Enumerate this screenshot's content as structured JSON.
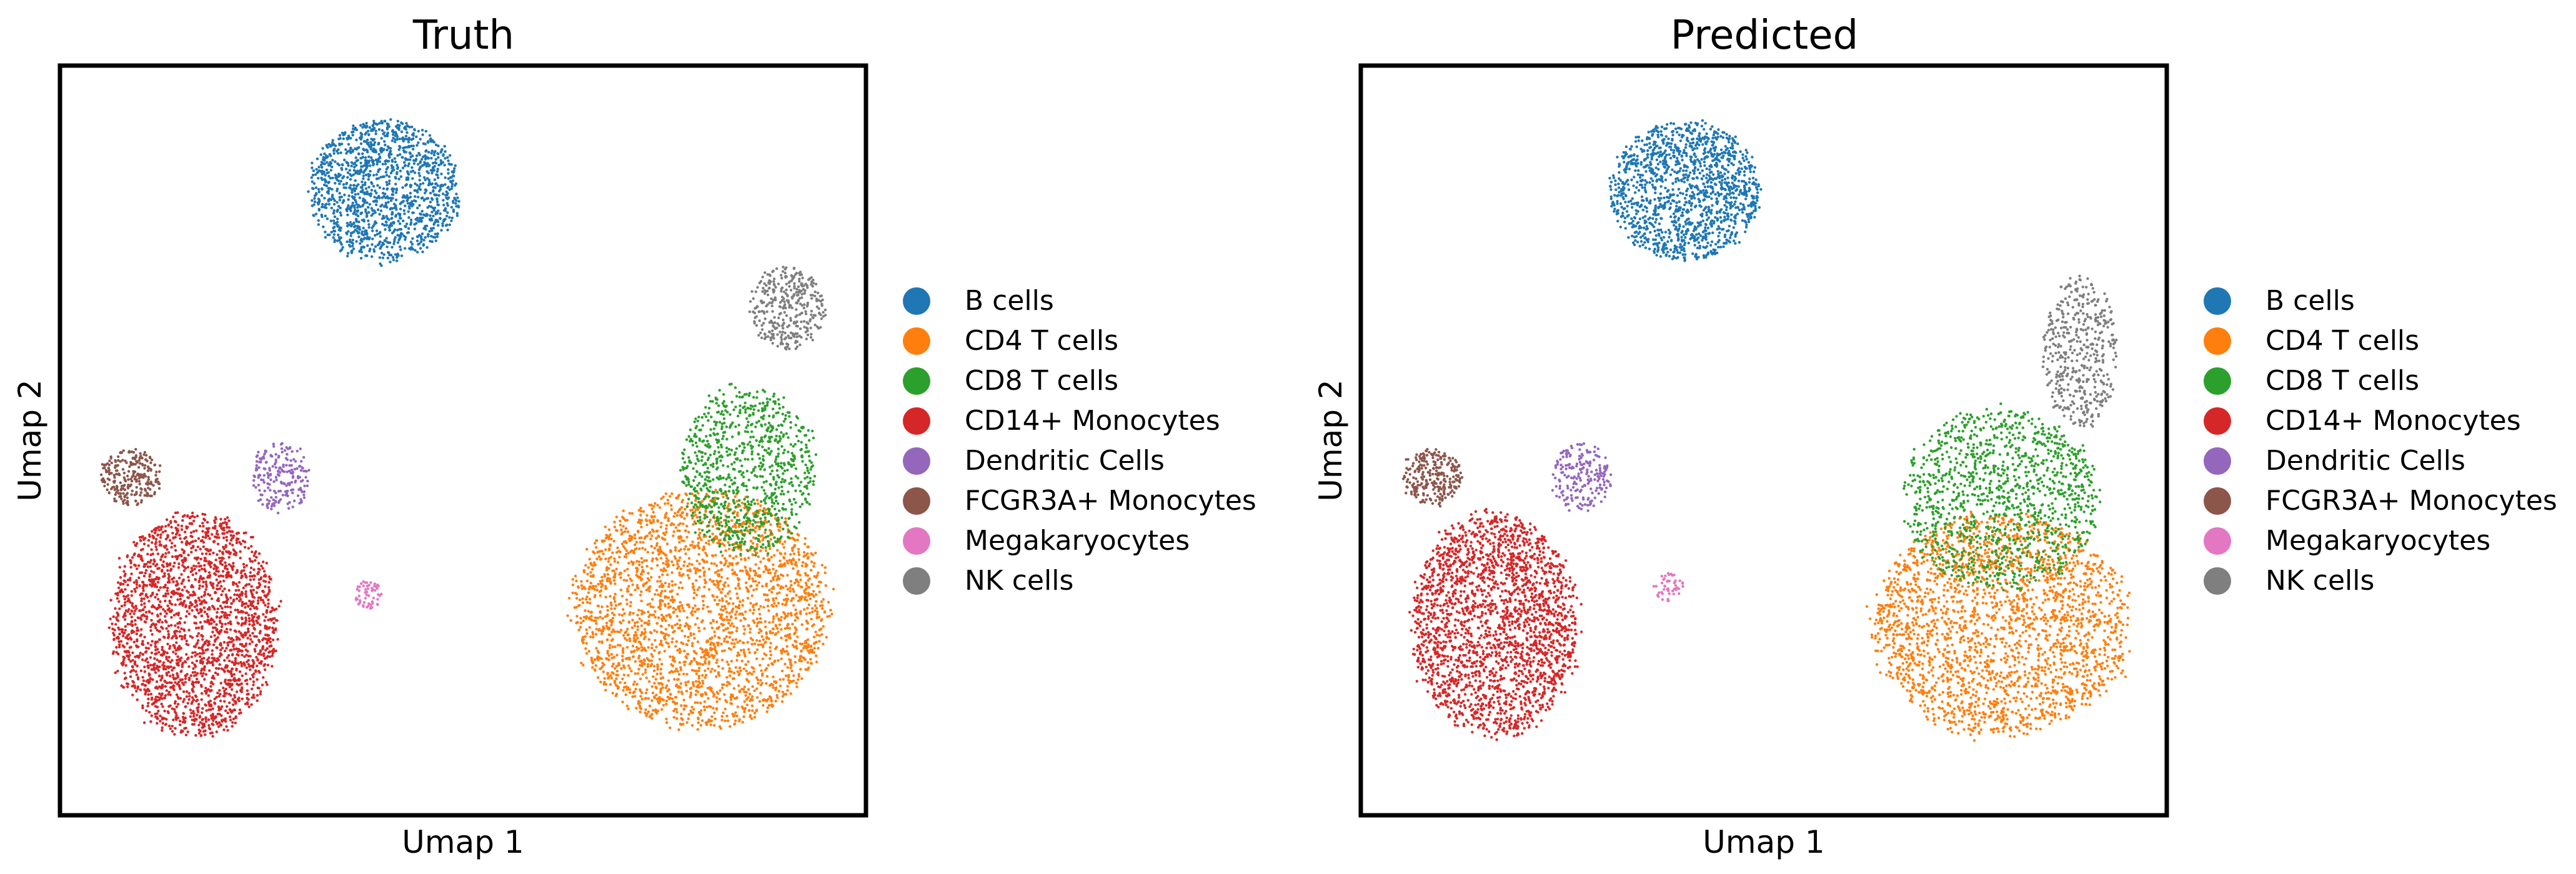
{
  "chart_data": {
    "type": "scatter",
    "categories": [
      "B cells",
      "CD4 T cells",
      "CD8 T cells",
      "CD14+ Monocytes",
      "Dendritic Cells",
      "FCGR3A+ Monocytes",
      "Megakaryocytes",
      "NK cells"
    ],
    "colors": {
      "B cells": "#1f77b4",
      "CD4 T cells": "#ff7f0e",
      "CD8 T cells": "#2ca02c",
      "CD14+ Monocytes": "#d62728",
      "Dendritic Cells": "#9467bd",
      "FCGR3A+ Monocytes": "#8c564b",
      "Megakaryocytes": "#e377c2",
      "NK cells": "#7f7f7f"
    },
    "xlim": [
      0,
      1
    ],
    "ylim": [
      0,
      1
    ],
    "panels": [
      {
        "title": "Truth",
        "xlabel": "Umap 1",
        "ylabel": "Umap 2",
        "legend": [
          "B cells",
          "CD4 T cells",
          "CD8 T cells",
          "CD14+ Monocytes",
          "Dendritic Cells",
          "FCGR3A+ Monocytes",
          "Megakaryocytes",
          "NK cells"
        ],
        "clusters": [
          {
            "label": "B cells",
            "cx": 0.4,
            "cy": 0.84,
            "rx": 0.1,
            "ry": 0.1,
            "n": 1400
          },
          {
            "label": "CD4 T cells",
            "cx": 0.8,
            "cy": 0.27,
            "rx": 0.17,
            "ry": 0.17,
            "n": 2600
          },
          {
            "label": "CD8 T cells",
            "cx": 0.86,
            "cy": 0.46,
            "rx": 0.09,
            "ry": 0.12,
            "n": 900
          },
          {
            "label": "CD14+ Monocytes",
            "cx": 0.16,
            "cy": 0.25,
            "rx": 0.11,
            "ry": 0.16,
            "n": 2200
          },
          {
            "label": "Dendritic Cells",
            "cx": 0.27,
            "cy": 0.45,
            "rx": 0.04,
            "ry": 0.05,
            "n": 200
          },
          {
            "label": "FCGR3A+ Monocytes",
            "cx": 0.08,
            "cy": 0.45,
            "rx": 0.04,
            "ry": 0.04,
            "n": 250
          },
          {
            "label": "Megakaryocytes",
            "cx": 0.38,
            "cy": 0.29,
            "rx": 0.02,
            "ry": 0.02,
            "n": 60
          },
          {
            "label": "NK cells",
            "cx": 0.91,
            "cy": 0.68,
            "rx": 0.05,
            "ry": 0.06,
            "n": 350
          }
        ]
      },
      {
        "title": "Predicted",
        "xlabel": "Umap 1",
        "ylabel": "Umap 2",
        "legend": [
          "B cells",
          "CD4 T cells",
          "CD8 T cells",
          "CD14+ Monocytes",
          "Dendritic Cells",
          "FCGR3A+ Monocytes",
          "Megakaryocytes",
          "NK cells"
        ],
        "clusters": [
          {
            "label": "B cells",
            "cx": 0.4,
            "cy": 0.84,
            "rx": 0.1,
            "ry": 0.1,
            "n": 1400
          },
          {
            "label": "CD4 T cells",
            "cx": 0.8,
            "cy": 0.25,
            "rx": 0.17,
            "ry": 0.16,
            "n": 2300
          },
          {
            "label": "CD8 T cells",
            "cx": 0.8,
            "cy": 0.42,
            "rx": 0.13,
            "ry": 0.13,
            "n": 1200
          },
          {
            "label": "CD14+ Monocytes",
            "cx": 0.16,
            "cy": 0.25,
            "rx": 0.11,
            "ry": 0.16,
            "n": 2200
          },
          {
            "label": "Dendritic Cells",
            "cx": 0.27,
            "cy": 0.45,
            "rx": 0.04,
            "ry": 0.05,
            "n": 200
          },
          {
            "label": "FCGR3A+ Monocytes",
            "cx": 0.08,
            "cy": 0.45,
            "rx": 0.04,
            "ry": 0.04,
            "n": 250
          },
          {
            "label": "Megakaryocytes",
            "cx": 0.38,
            "cy": 0.3,
            "rx": 0.02,
            "ry": 0.02,
            "n": 50
          },
          {
            "label": "NK cells",
            "cx": 0.9,
            "cy": 0.62,
            "rx": 0.05,
            "ry": 0.11,
            "n": 450
          }
        ]
      }
    ]
  }
}
